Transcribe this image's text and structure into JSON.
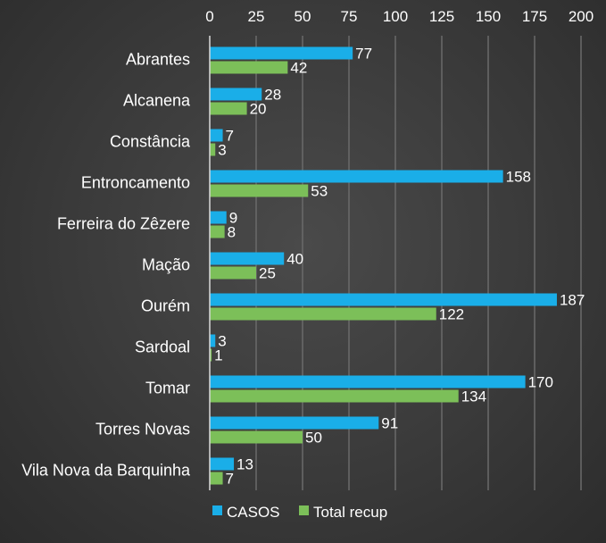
{
  "chart_data": {
    "type": "bar",
    "orientation": "horizontal",
    "categories": [
      "Abrantes",
      "Alcanena",
      "Constância",
      "Entroncamento",
      "Ferreira do Zêzere",
      "Mação",
      "Ourém",
      "Sardoal",
      "Tomar",
      "Torres Novas",
      "Vila Nova da Barquinha"
    ],
    "series": [
      {
        "name": "CASOS",
        "color": "#1aaee8",
        "values": [
          77,
          28,
          7,
          158,
          9,
          40,
          187,
          3,
          170,
          91,
          13
        ]
      },
      {
        "name": "Total recup",
        "color": "#7cbf59",
        "values": [
          42,
          20,
          3,
          53,
          8,
          25,
          122,
          1,
          134,
          50,
          7
        ]
      }
    ],
    "xlim": [
      0,
      200
    ],
    "xticks": [
      0,
      25,
      50,
      75,
      100,
      125,
      150,
      175,
      200
    ],
    "x_axis_position": "top",
    "grid": "vertical",
    "legend_position": "bottom",
    "title": "",
    "xlabel": "",
    "ylabel": ""
  }
}
